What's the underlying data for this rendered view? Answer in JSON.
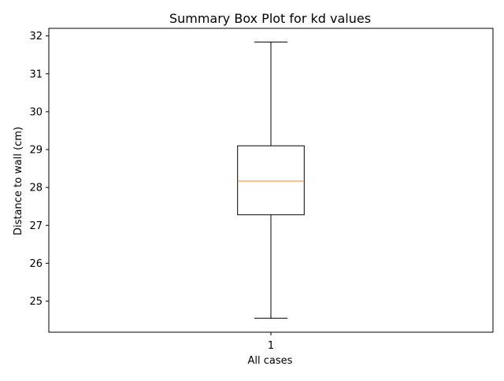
{
  "chart_data": {
    "type": "box",
    "title": "Summary Box Plot for kd values",
    "xlabel": "All cases",
    "ylabel": "Distance to wall (cm)",
    "categories": [
      "1"
    ],
    "ylim": [
      24.18,
      32.2
    ],
    "yticks": [
      "25",
      "26",
      "27",
      "28",
      "29",
      "30",
      "31",
      "32"
    ],
    "grid": false,
    "boxes": [
      {
        "category": "1",
        "whisker_low": 24.55,
        "q1": 27.28,
        "median": 28.17,
        "q3": 29.1,
        "whisker_high": 31.84
      }
    ],
    "colors": {
      "box": "#000000",
      "median": "#ff7f0e"
    }
  }
}
